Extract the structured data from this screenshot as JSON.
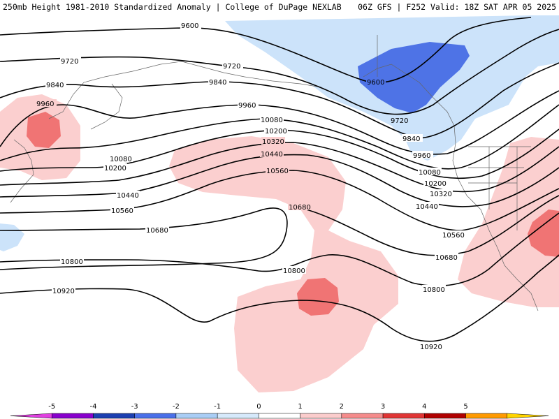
{
  "header": {
    "left_title": "250mb Height 1981-2010 Standardized Anomaly | College of DuPage NEXLAB",
    "right_title": "06Z GFS | F252 Valid: 18Z SAT APR 05 2025"
  },
  "contour_labels": [
    "9600",
    "9720",
    "9840",
    "9960",
    "10080",
    "10200",
    "10320",
    "10440",
    "10560",
    "10680",
    "10800",
    "10920"
  ],
  "colorbar": {
    "ticks": [
      "-5",
      "-4",
      "-3",
      "-2",
      "-1",
      "0",
      "1",
      "2",
      "3",
      "4",
      "5"
    ],
    "colors": [
      "#e040e0",
      "#8800cc",
      "#1c3fb0",
      "#4a6fe8",
      "#a9cdf5",
      "#d6e9fb",
      "#ffffff",
      "#fbcccc",
      "#f58b8b",
      "#e03434",
      "#b00000",
      "#ff9a00",
      "#ffd400"
    ]
  },
  "anomaly_colors": {
    "neg1": "#cce3fa",
    "neg2": "#4e73e6",
    "pos1": "#fbcfcf",
    "pos2": "#f07474"
  }
}
